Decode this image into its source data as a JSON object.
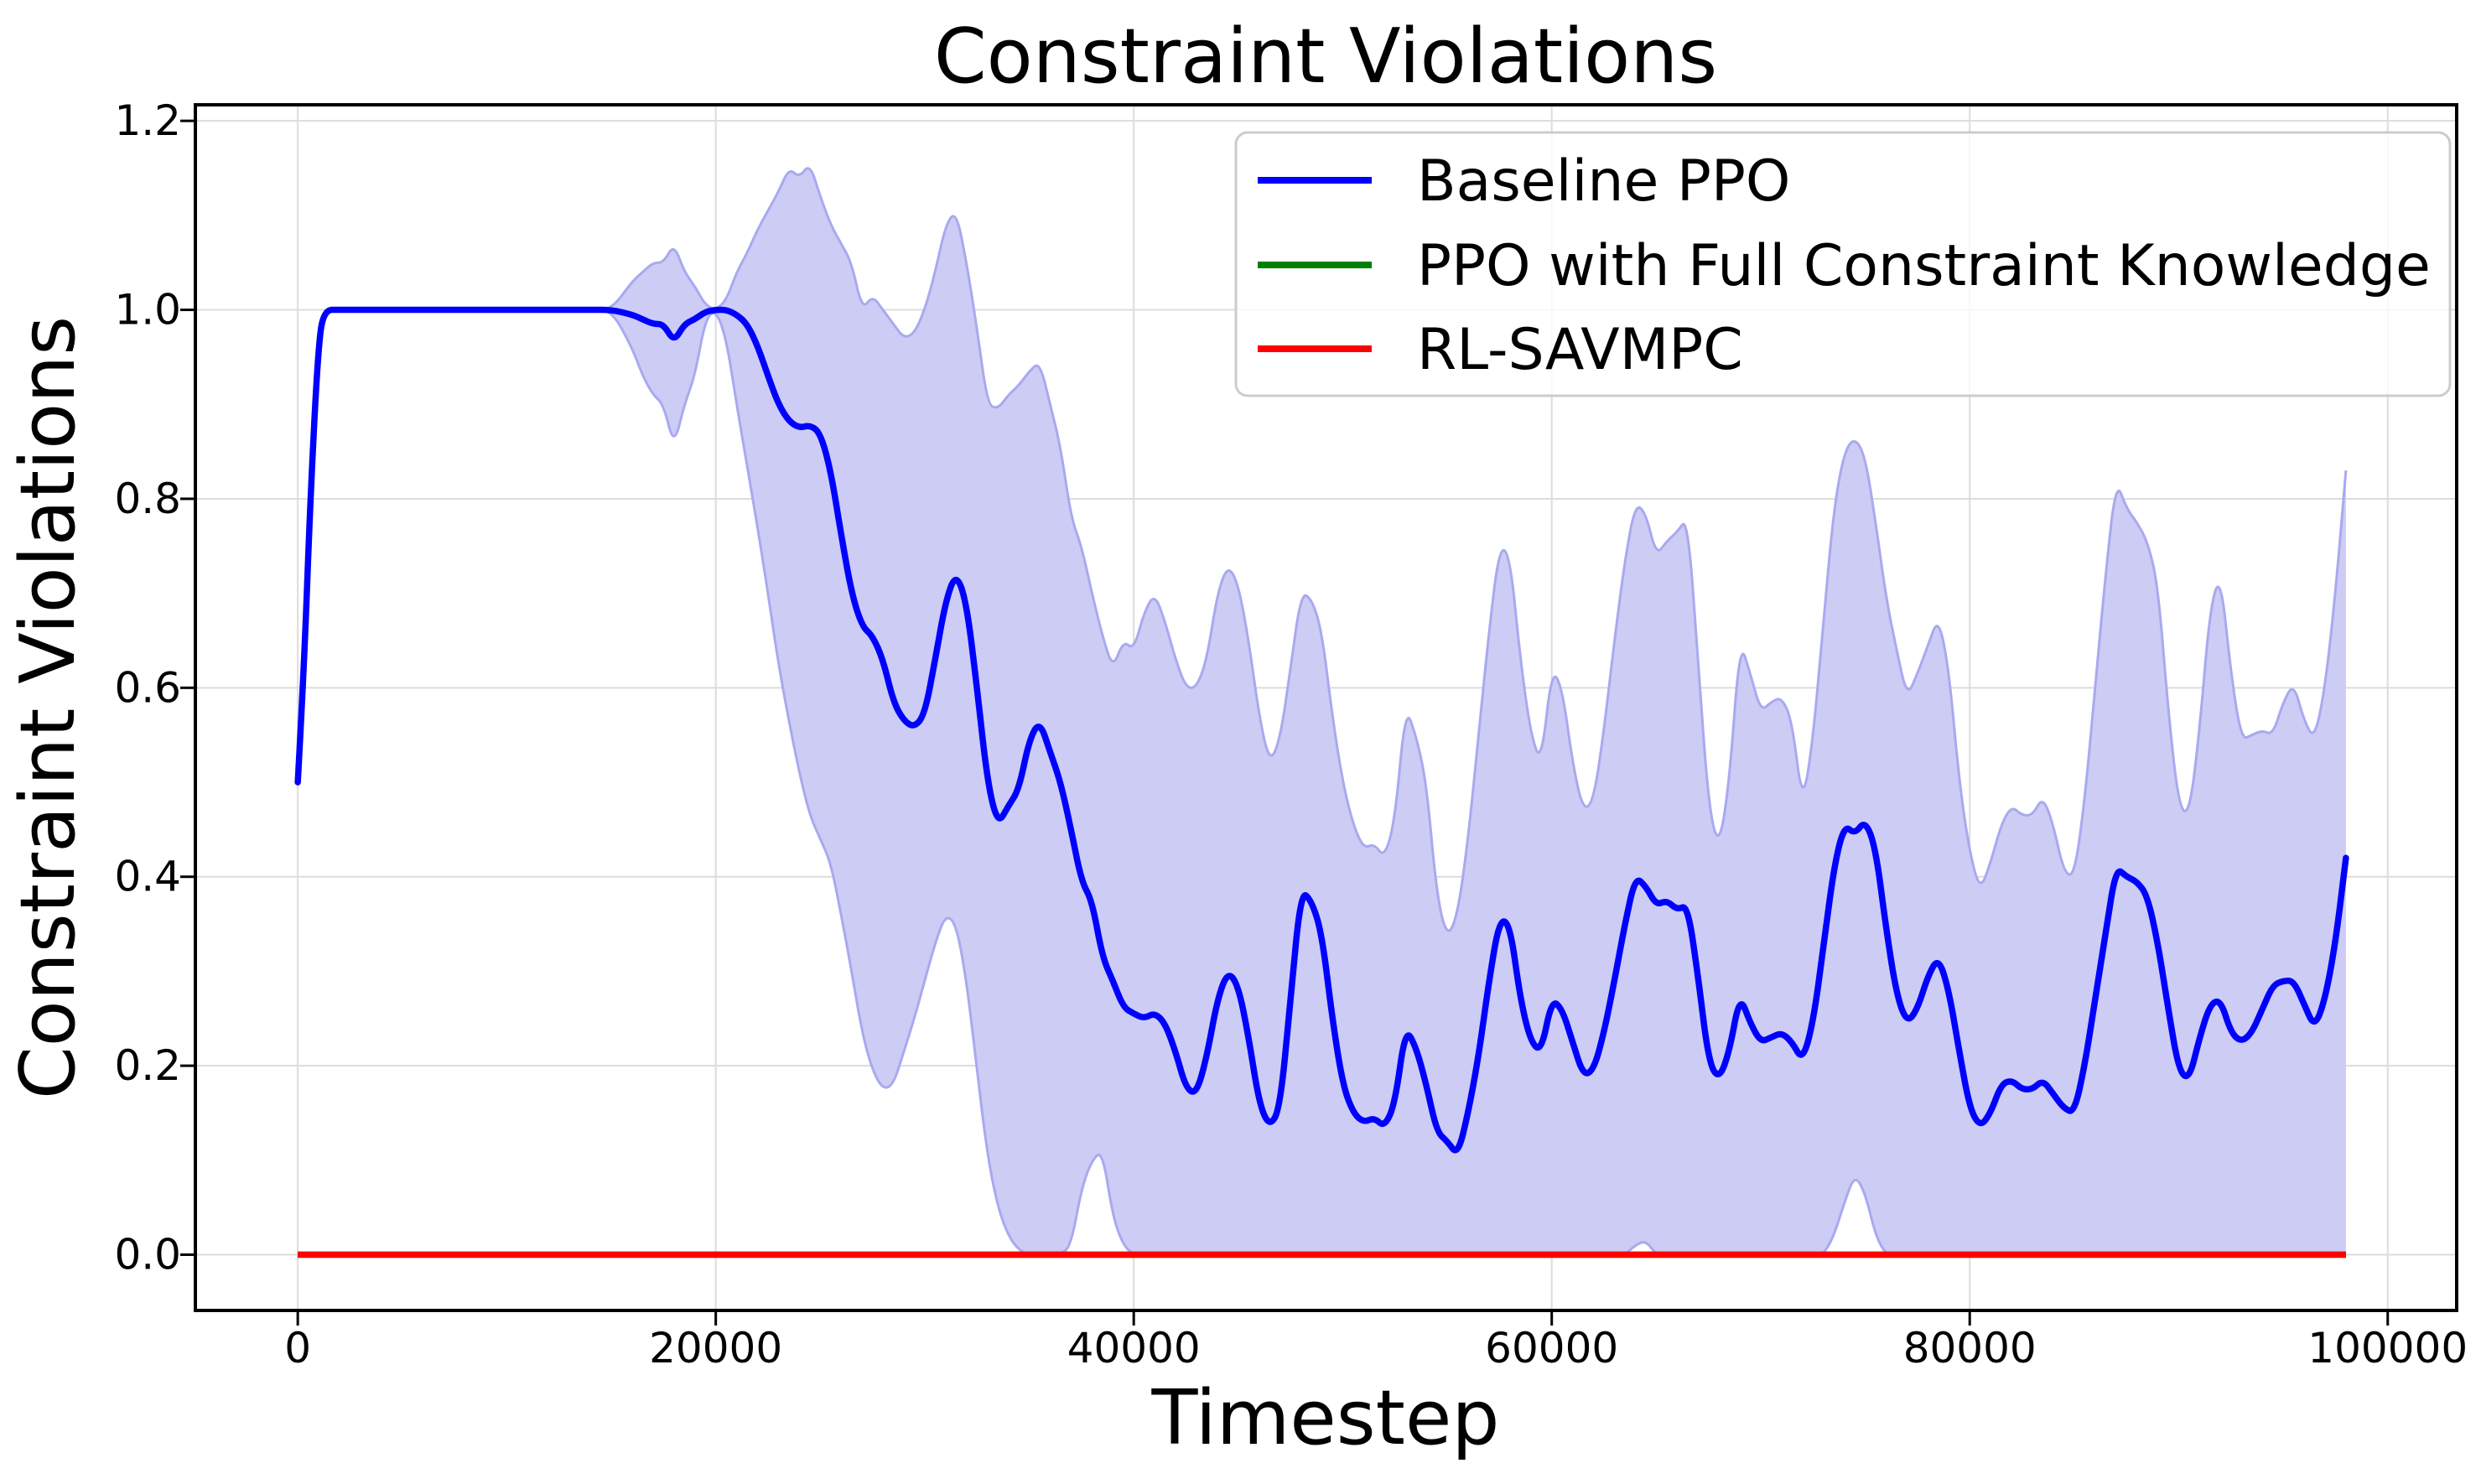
{
  "chart_data": {
    "type": "line",
    "title": "Constraint Violations",
    "xlabel": "Timestep",
    "ylabel": "Constraint Violations",
    "x_ticks": [
      0,
      20000,
      40000,
      60000,
      80000,
      100000
    ],
    "y_ticks": [
      0.0,
      0.2,
      0.4,
      0.6,
      0.8,
      1.0,
      1.2
    ],
    "xlim": [
      -4900,
      103300
    ],
    "ylim": [
      -0.059,
      1.217
    ],
    "grid": true,
    "legend_position": "upper right",
    "legend_entries": [
      "Baseline PPO",
      "PPO with Full Constraint Knowledge",
      "RL-SAVMPC"
    ],
    "series": [
      {
        "name": "Baseline PPO",
        "color": "#0000ff",
        "band_fill": "#ccccf5",
        "band_edge": "#a9a9ef",
        "x": [
          0,
          300,
          600,
          1000,
          1300,
          2000,
          4000,
          6000,
          8000,
          10000,
          12000,
          14000,
          15000,
          16000,
          16500,
          17000,
          17500,
          18000,
          18500,
          19000,
          19500,
          20000,
          20500,
          21000,
          21500,
          22000,
          22500,
          23000,
          23500,
          24000,
          24500,
          25000,
          25500,
          26000,
          26500,
          27000,
          27500,
          28000,
          28500,
          29000,
          29500,
          30000,
          30500,
          31000,
          31500,
          32000,
          32500,
          33000,
          33500,
          34000,
          34500,
          35000,
          35500,
          36000,
          36500,
          37000,
          37500,
          38000,
          38500,
          39000,
          39500,
          40000,
          40500,
          41000,
          41500,
          42000,
          42500,
          43000,
          43500,
          44000,
          44500,
          45000,
          45500,
          46000,
          46500,
          47000,
          47500,
          48000,
          48500,
          49000,
          49500,
          50000,
          50500,
          51000,
          51500,
          52000,
          52500,
          53000,
          53500,
          54000,
          54500,
          55000,
          55500,
          56000,
          56500,
          57000,
          57500,
          58000,
          58500,
          59000,
          59500,
          60000,
          60500,
          61000,
          61500,
          62000,
          62500,
          63000,
          63500,
          64000,
          64500,
          65000,
          65500,
          66000,
          66500,
          67000,
          67500,
          68000,
          68500,
          69000,
          69500,
          70000,
          70500,
          71000,
          71500,
          72000,
          72500,
          73000,
          73500,
          74000,
          74500,
          75000,
          75500,
          76000,
          76500,
          77000,
          77500,
          78000,
          78500,
          79000,
          79500,
          80000,
          80500,
          81000,
          81500,
          82000,
          82500,
          83000,
          83500,
          84000,
          84500,
          85000,
          85500,
          86000,
          86500,
          87000,
          87500,
          88000,
          88500,
          89000,
          89500,
          90000,
          90500,
          91000,
          91500,
          92000,
          92500,
          93000,
          93500,
          94000,
          94500,
          95000,
          95500,
          96000,
          96500,
          97000,
          97500,
          98000
        ],
        "mean": [
          0.5,
          0.62,
          0.8,
          0.97,
          1.0,
          1.0,
          1.0,
          1.0,
          1.0,
          1.0,
          1.0,
          1.0,
          1.0,
          0.995,
          0.99,
          0.985,
          0.985,
          0.966,
          0.985,
          0.99,
          0.998,
          1.0,
          1.0,
          0.995,
          0.985,
          0.962,
          0.93,
          0.9,
          0.882,
          0.875,
          0.878,
          0.87,
          0.83,
          0.762,
          0.7,
          0.665,
          0.655,
          0.63,
          0.585,
          0.565,
          0.558,
          0.572,
          0.63,
          0.692,
          0.722,
          0.69,
          0.6,
          0.5,
          0.455,
          0.475,
          0.492,
          0.545,
          0.565,
          0.532,
          0.5,
          0.45,
          0.395,
          0.375,
          0.315,
          0.29,
          0.262,
          0.255,
          0.25,
          0.256,
          0.245,
          0.215,
          0.176,
          0.17,
          0.21,
          0.27,
          0.3,
          0.285,
          0.23,
          0.16,
          0.135,
          0.155,
          0.27,
          0.385,
          0.375,
          0.34,
          0.25,
          0.18,
          0.15,
          0.14,
          0.145,
          0.135,
          0.16,
          0.24,
          0.22,
          0.18,
          0.13,
          0.12,
          0.105,
          0.15,
          0.21,
          0.29,
          0.355,
          0.35,
          0.27,
          0.225,
          0.215,
          0.27,
          0.26,
          0.225,
          0.19,
          0.195,
          0.235,
          0.29,
          0.35,
          0.4,
          0.39,
          0.37,
          0.375,
          0.365,
          0.37,
          0.295,
          0.205,
          0.185,
          0.215,
          0.275,
          0.245,
          0.225,
          0.23,
          0.235,
          0.225,
          0.205,
          0.245,
          0.325,
          0.41,
          0.455,
          0.445,
          0.46,
          0.43,
          0.345,
          0.275,
          0.245,
          0.26,
          0.295,
          0.315,
          0.28,
          0.215,
          0.155,
          0.135,
          0.15,
          0.18,
          0.185,
          0.175,
          0.175,
          0.185,
          0.17,
          0.155,
          0.15,
          0.2,
          0.27,
          0.34,
          0.41,
          0.4,
          0.395,
          0.38,
          0.33,
          0.26,
          0.195,
          0.185,
          0.23,
          0.265,
          0.27,
          0.235,
          0.225,
          0.235,
          0.26,
          0.285,
          0.29,
          0.29,
          0.265,
          0.24,
          0.27,
          0.33,
          0.42
        ],
        "lower": [
          0.5,
          0.62,
          0.8,
          0.97,
          1.0,
          1.0,
          1.0,
          1.0,
          1.0,
          1.0,
          1.0,
          1.0,
          1.0,
          0.96,
          0.93,
          0.91,
          0.9,
          0.855,
          0.9,
          0.93,
          0.99,
          1.0,
          0.97,
          0.9,
          0.835,
          0.77,
          0.7,
          0.625,
          0.565,
          0.51,
          0.465,
          0.44,
          0.415,
          0.36,
          0.3,
          0.235,
          0.195,
          0.175,
          0.18,
          0.215,
          0.25,
          0.29,
          0.33,
          0.36,
          0.35,
          0.29,
          0.195,
          0.105,
          0.05,
          0.02,
          0.005,
          0,
          0,
          0,
          0,
          0.01,
          0.07,
          0.1,
          0.11,
          0.04,
          0.01,
          0,
          0,
          0,
          0,
          0,
          0,
          0,
          0,
          0,
          0,
          0,
          0,
          0,
          0,
          0,
          0,
          0,
          0,
          0,
          0,
          0,
          0,
          0,
          0,
          0,
          0,
          0,
          0,
          0,
          0,
          0,
          0,
          0,
          0,
          0,
          0,
          0,
          0,
          0,
          0,
          0,
          0,
          0,
          0,
          0,
          0,
          0,
          0,
          0.01,
          0.015,
          0,
          0,
          0,
          0,
          0,
          0,
          0,
          0,
          0,
          0,
          0,
          0,
          0,
          0,
          0,
          0,
          0,
          0.02,
          0.055,
          0.085,
          0.065,
          0.02,
          0,
          0,
          0,
          0,
          0,
          0,
          0,
          0,
          0,
          0,
          0,
          0,
          0,
          0,
          0,
          0,
          0,
          0,
          0,
          0,
          0,
          0,
          0,
          0,
          0,
          0,
          0,
          0,
          0,
          0,
          0,
          0,
          0,
          0,
          0,
          0,
          0,
          0,
          0,
          0,
          0,
          0,
          0,
          0,
          0
        ],
        "upper": [
          0.5,
          0.62,
          0.8,
          0.97,
          1.0,
          1.0,
          1.0,
          1.0,
          1.0,
          1.0,
          1.0,
          1.0,
          1.0,
          1.03,
          1.04,
          1.05,
          1.05,
          1.07,
          1.04,
          1.025,
          1.005,
          1.0,
          1.01,
          1.04,
          1.06,
          1.085,
          1.105,
          1.125,
          1.15,
          1.14,
          1.155,
          1.12,
          1.09,
          1.07,
          1.05,
          1.0,
          1.015,
          1.0,
          0.985,
          0.97,
          0.975,
          1.0,
          1.04,
          1.09,
          1.105,
          1.05,
          0.98,
          0.9,
          0.895,
          0.91,
          0.92,
          0.935,
          0.945,
          0.9,
          0.855,
          0.78,
          0.75,
          0.7,
          0.655,
          0.62,
          0.65,
          0.64,
          0.68,
          0.7,
          0.67,
          0.63,
          0.6,
          0.6,
          0.63,
          0.7,
          0.73,
          0.71,
          0.65,
          0.57,
          0.52,
          0.545,
          0.62,
          0.7,
          0.695,
          0.66,
          0.57,
          0.5,
          0.455,
          0.43,
          0.435,
          0.42,
          0.46,
          0.58,
          0.55,
          0.5,
          0.38,
          0.335,
          0.36,
          0.44,
          0.55,
          0.66,
          0.75,
          0.74,
          0.63,
          0.55,
          0.52,
          0.62,
          0.6,
          0.52,
          0.47,
          0.48,
          0.555,
          0.65,
          0.735,
          0.795,
          0.785,
          0.74,
          0.755,
          0.765,
          0.78,
          0.63,
          0.475,
          0.43,
          0.5,
          0.65,
          0.615,
          0.575,
          0.585,
          0.59,
          0.565,
          0.475,
          0.545,
          0.67,
          0.79,
          0.85,
          0.865,
          0.845,
          0.775,
          0.695,
          0.64,
          0.59,
          0.615,
          0.645,
          0.675,
          0.62,
          0.5,
          0.425,
          0.385,
          0.415,
          0.455,
          0.475,
          0.465,
          0.465,
          0.485,
          0.455,
          0.405,
          0.4,
          0.48,
          0.6,
          0.72,
          0.82,
          0.79,
          0.775,
          0.755,
          0.71,
          0.575,
          0.475,
          0.465,
          0.555,
          0.685,
          0.72,
          0.615,
          0.545,
          0.55,
          0.555,
          0.55,
          0.585,
          0.605,
          0.565,
          0.545,
          0.6,
          0.7,
          0.83
        ]
      },
      {
        "name": "PPO with Full Constraint Knowledge",
        "color": "#008000",
        "constant": 0.0,
        "x_start": 0,
        "x_end": 98000
      },
      {
        "name": "RL-SAVMPC",
        "color": "#ff0000",
        "constant": 0.0,
        "x_start": 0,
        "x_end": 98000
      }
    ]
  },
  "colors": {
    "grid": "#dcdcdc",
    "spine": "#000000",
    "legend_border": "#cccccc",
    "background": "#ffffff"
  }
}
